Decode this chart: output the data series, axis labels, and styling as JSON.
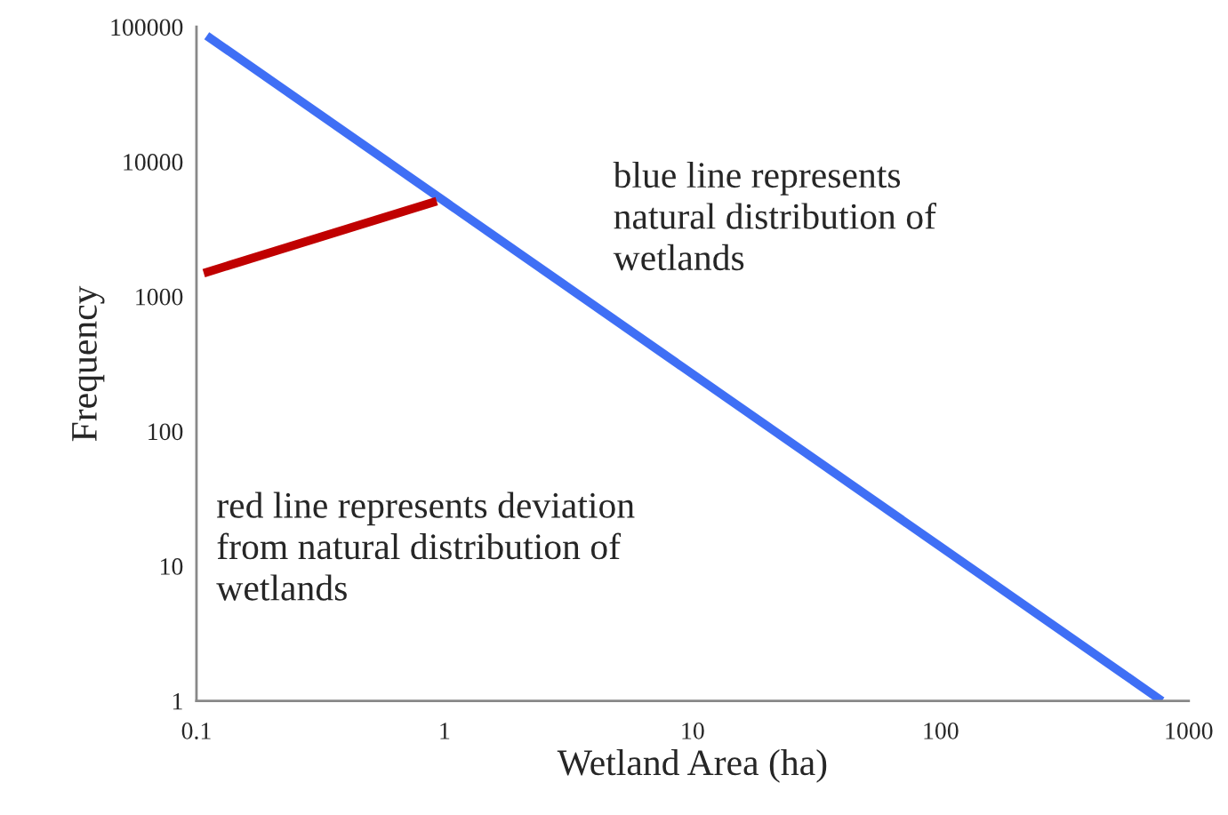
{
  "chart_data": {
    "type": "line",
    "xlabel": "Wetland Area (ha)",
    "ylabel": "Frequency",
    "log": "xy",
    "xlim": [
      0.1,
      1000
    ],
    "ylim": [
      1,
      100000
    ],
    "xticks": [
      0.1,
      1,
      10,
      100,
      1000
    ],
    "yticks": [
      1,
      10,
      100,
      1000,
      10000,
      100000
    ],
    "grid": false,
    "legend": false,
    "marker": "none",
    "line_style": "solid",
    "series": [
      {
        "color": "#3f6ff5",
        "x": [
          0.11,
          780
        ],
        "values": [
          86000,
          1
        ]
      },
      {
        "color": "#c00000",
        "x": [
          0.107,
          0.93
        ],
        "values": [
          1490,
          5100
        ]
      }
    ],
    "annotations": [
      "blue line represents\nnatural distribution of\nwetlands",
      "red line represents deviation\nfrom natural distribution of\nwetlands"
    ]
  }
}
